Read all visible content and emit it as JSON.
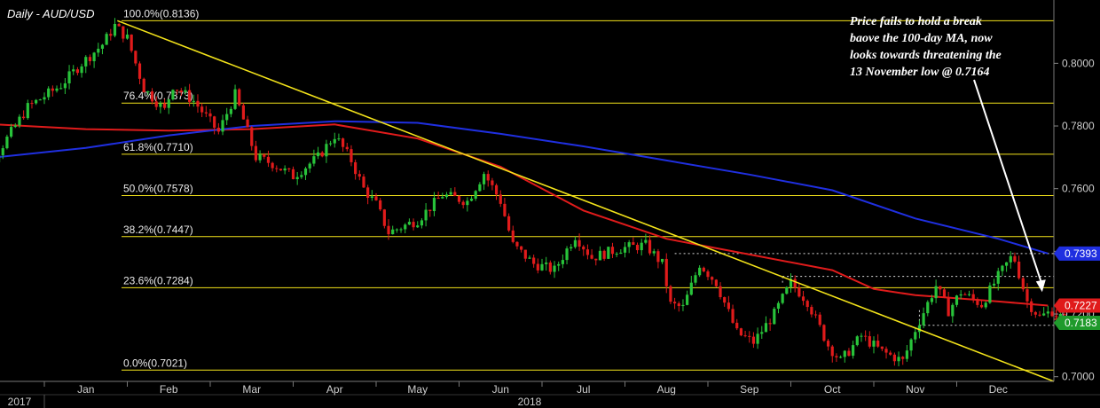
{
  "chart_data": {
    "type": "candlestick",
    "title": "Daily - AUD/USD",
    "ylim": [
      0.6985,
      0.8185
    ],
    "y_ticks": [
      {
        "value": 0.8,
        "label": "0.8000"
      },
      {
        "value": 0.78,
        "label": "0.7800"
      },
      {
        "value": 0.76,
        "label": "0.7600"
      },
      {
        "value": 0.74,
        "label": "0.7400"
      },
      {
        "value": 0.72,
        "label": "0.7200"
      },
      {
        "value": 0.7,
        "label": "0.7000"
      }
    ],
    "x_months": [
      {
        "label": "Jan",
        "t": 0.5
      },
      {
        "label": "Feb",
        "t": 1.5
      },
      {
        "label": "Mar",
        "t": 2.5
      },
      {
        "label": "Apr",
        "t": 3.5
      },
      {
        "label": "May",
        "t": 4.5
      },
      {
        "label": "Jun",
        "t": 5.5
      },
      {
        "label": "Jul",
        "t": 6.5
      },
      {
        "label": "Aug",
        "t": 7.5
      },
      {
        "label": "Sep",
        "t": 8.5
      },
      {
        "label": "Oct",
        "t": 9.5
      },
      {
        "label": "Nov",
        "t": 10.5
      },
      {
        "label": "Dec",
        "t": 11.5
      }
    ],
    "month_ticks": [
      0,
      1,
      2,
      3,
      4,
      5,
      6,
      7,
      8,
      9,
      10,
      11
    ],
    "years": [
      {
        "label": "2017",
        "t": -0.85
      },
      {
        "label": "2018",
        "t": 5.85
      }
    ],
    "fibonacci": [
      {
        "label": "100.0%(0.8136)",
        "value": 0.8136
      },
      {
        "label": "76.4%(0.7873)",
        "value": 0.7873
      },
      {
        "label": "61.8%(0.7710)",
        "value": 0.771
      },
      {
        "label": "50.0%(0.7578)",
        "value": 0.7578
      },
      {
        "label": "38.2%(0.7447)",
        "value": 0.7447
      },
      {
        "label": "23.6%(0.7284)",
        "value": 0.7284
      },
      {
        "label": "0.0%(0.7021)",
        "value": 0.7021
      }
    ],
    "price_path": [
      {
        "t": -0.95,
        "v": 0.766
      },
      {
        "t": -0.6,
        "v": 0.77
      },
      {
        "t": -0.4,
        "v": 0.778
      },
      {
        "t": -0.2,
        "v": 0.786
      },
      {
        "t": 0.2,
        "v": 0.793
      },
      {
        "t": 0.45,
        "v": 0.8
      },
      {
        "t": 0.7,
        "v": 0.806
      },
      {
        "t": 0.85,
        "v": 0.812
      },
      {
        "t": 1.0,
        "v": 0.808
      },
      {
        "t": 1.2,
        "v": 0.792
      },
      {
        "t": 1.45,
        "v": 0.785
      },
      {
        "t": 1.55,
        "v": 0.793
      },
      {
        "t": 1.8,
        "v": 0.788
      },
      {
        "t": 2.1,
        "v": 0.778
      },
      {
        "t": 2.3,
        "v": 0.79
      },
      {
        "t": 2.55,
        "v": 0.77
      },
      {
        "t": 2.75,
        "v": 0.768
      },
      {
        "t": 3.0,
        "v": 0.764
      },
      {
        "t": 3.3,
        "v": 0.77
      },
      {
        "t": 3.5,
        "v": 0.777
      },
      {
        "t": 3.7,
        "v": 0.769
      },
      {
        "t": 3.85,
        "v": 0.76
      },
      {
        "t": 4.0,
        "v": 0.755
      },
      {
        "t": 4.15,
        "v": 0.746
      },
      {
        "t": 4.5,
        "v": 0.75
      },
      {
        "t": 4.8,
        "v": 0.758
      },
      {
        "t": 5.1,
        "v": 0.756
      },
      {
        "t": 5.3,
        "v": 0.765
      },
      {
        "t": 5.5,
        "v": 0.756
      },
      {
        "t": 5.65,
        "v": 0.742
      },
      {
        "t": 5.9,
        "v": 0.736
      },
      {
        "t": 6.15,
        "v": 0.734
      },
      {
        "t": 6.4,
        "v": 0.745
      },
      {
        "t": 6.6,
        "v": 0.738
      },
      {
        "t": 6.95,
        "v": 0.741
      },
      {
        "t": 7.25,
        "v": 0.742
      },
      {
        "t": 7.45,
        "v": 0.736
      },
      {
        "t": 7.55,
        "v": 0.723
      },
      {
        "t": 7.7,
        "v": 0.722
      },
      {
        "t": 7.9,
        "v": 0.736
      },
      {
        "t": 8.1,
        "v": 0.73
      },
      {
        "t": 8.35,
        "v": 0.714
      },
      {
        "t": 8.55,
        "v": 0.711
      },
      {
        "t": 8.8,
        "v": 0.72
      },
      {
        "t": 9.0,
        "v": 0.73
      },
      {
        "t": 9.2,
        "v": 0.724
      },
      {
        "t": 9.45,
        "v": 0.71
      },
      {
        "t": 9.6,
        "v": 0.705
      },
      {
        "t": 9.85,
        "v": 0.713
      },
      {
        "t": 10.1,
        "v": 0.708
      },
      {
        "t": 10.35,
        "v": 0.705
      },
      {
        "t": 10.5,
        "v": 0.715
      },
      {
        "t": 10.75,
        "v": 0.729
      },
      {
        "t": 10.9,
        "v": 0.721
      },
      {
        "t": 11.05,
        "v": 0.727
      },
      {
        "t": 11.3,
        "v": 0.723
      },
      {
        "t": 11.5,
        "v": 0.732
      },
      {
        "t": 11.68,
        "v": 0.739
      },
      {
        "t": 11.85,
        "v": 0.724
      },
      {
        "t": 12.0,
        "v": 0.719
      },
      {
        "t": 12.15,
        "v": 0.721
      },
      {
        "t": 12.3,
        "v": 0.7183
      }
    ],
    "ma_blue": {
      "color": "#1f2fe0",
      "points": [
        {
          "t": -0.95,
          "v": 0.769
        },
        {
          "t": 0.5,
          "v": 0.773
        },
        {
          "t": 1.5,
          "v": 0.777
        },
        {
          "t": 2.5,
          "v": 0.78
        },
        {
          "t": 3.5,
          "v": 0.7815
        },
        {
          "t": 4.5,
          "v": 0.781
        },
        {
          "t": 5.5,
          "v": 0.7775
        },
        {
          "t": 6.5,
          "v": 0.7735
        },
        {
          "t": 7.5,
          "v": 0.769
        },
        {
          "t": 8.5,
          "v": 0.7645
        },
        {
          "t": 9.5,
          "v": 0.7595
        },
        {
          "t": 10.5,
          "v": 0.7505
        },
        {
          "t": 11.5,
          "v": 0.744
        },
        {
          "t": 12.1,
          "v": 0.7393
        }
      ]
    },
    "ma_red": {
      "color": "#e01b1b",
      "points": [
        {
          "t": -0.95,
          "v": 0.781
        },
        {
          "t": 0.5,
          "v": 0.779
        },
        {
          "t": 1.5,
          "v": 0.7785
        },
        {
          "t": 2.5,
          "v": 0.779
        },
        {
          "t": 3.5,
          "v": 0.7805
        },
        {
          "t": 4.5,
          "v": 0.776
        },
        {
          "t": 5.5,
          "v": 0.767
        },
        {
          "t": 6.5,
          "v": 0.753
        },
        {
          "t": 7.5,
          "v": 0.744
        },
        {
          "t": 8.5,
          "v": 0.739
        },
        {
          "t": 9.5,
          "v": 0.734
        },
        {
          "t": 10.0,
          "v": 0.728
        },
        {
          "t": 10.5,
          "v": 0.726
        },
        {
          "t": 11.5,
          "v": 0.724
        },
        {
          "t": 12.1,
          "v": 0.7227
        }
      ]
    },
    "trendline": {
      "color": "#f2e21a",
      "from": {
        "t": 0.88,
        "v": 0.8136
      },
      "to": {
        "t": 12.3,
        "v": 0.6985
      }
    },
    "dotted_lines": [
      {
        "t1": 7.6,
        "t2": 12.3,
        "v": 0.7393
      },
      {
        "t1": 8.9,
        "t2": 12.3,
        "v": 0.732
      },
      {
        "t1": 10.55,
        "t2": 12.3,
        "v": 0.7164
      }
    ],
    "badges": [
      {
        "label": "0.7393",
        "value": 0.7393,
        "color": "#1f2fe0"
      },
      {
        "label": "0.7227",
        "value": 0.7227,
        "color": "#e01b1b"
      },
      {
        "label": "0.7183",
        "value": 0.7183,
        "color": "#1f9a2c"
      }
    ],
    "annotation": {
      "lines": [
        "Price fails to hold a break",
        "baove the 100-day MA, now",
        "looks towards threatening the",
        "13 November low @ 0.7164"
      ],
      "arrow_to": {
        "t": 12.03,
        "v": 0.727
      }
    },
    "colors": {
      "up": "#28c33a",
      "down": "#e01b1b",
      "fib": "#f2e21a",
      "grid": "#3a3a3a"
    }
  }
}
